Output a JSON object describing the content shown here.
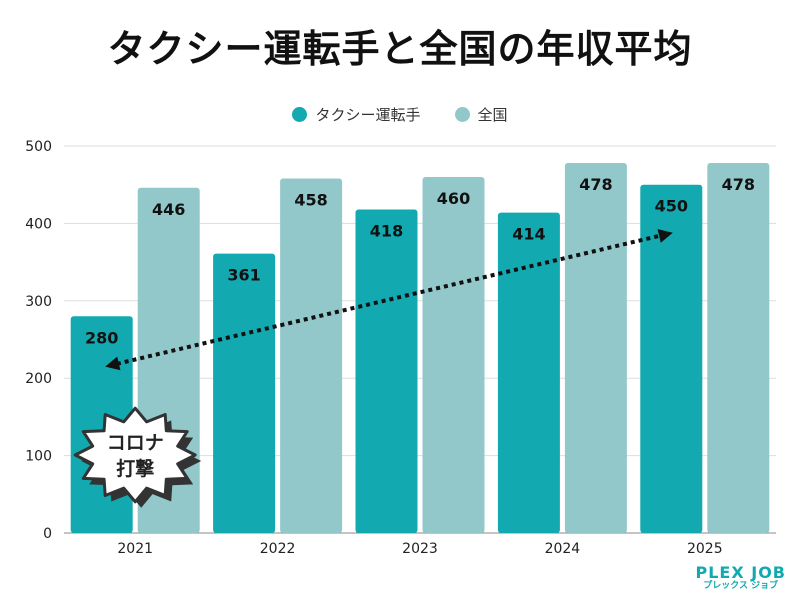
{
  "chart_data": {
    "type": "bar",
    "title": "タクシー運転手と全国の年収平均",
    "categories": [
      "2021",
      "2022",
      "2023",
      "2024",
      "2025"
    ],
    "series": [
      {
        "name": "タクシー運転手",
        "values": [
          280,
          361,
          418,
          414,
          450
        ],
        "color": "#12a9b0"
      },
      {
        "name": "全国",
        "values": [
          446,
          458,
          460,
          478,
          478
        ],
        "color": "#93c8ca"
      }
    ],
    "ylim": [
      0,
      500
    ],
    "yticks": [
      0,
      100,
      200,
      300,
      400,
      500
    ],
    "grid": true,
    "legend": "top-center",
    "annotations": [
      {
        "type": "starburst-label",
        "text": [
          "コロナ",
          "打撃"
        ],
        "category": "2021"
      },
      {
        "type": "dotted-double-arrow",
        "from": {
          "category": "2021",
          "value": 215
        },
        "to": {
          "category": "2025",
          "value": 388
        }
      }
    ]
  },
  "brand": {
    "main": "PLEX JOB",
    "sub": "プレックス ジョブ"
  }
}
